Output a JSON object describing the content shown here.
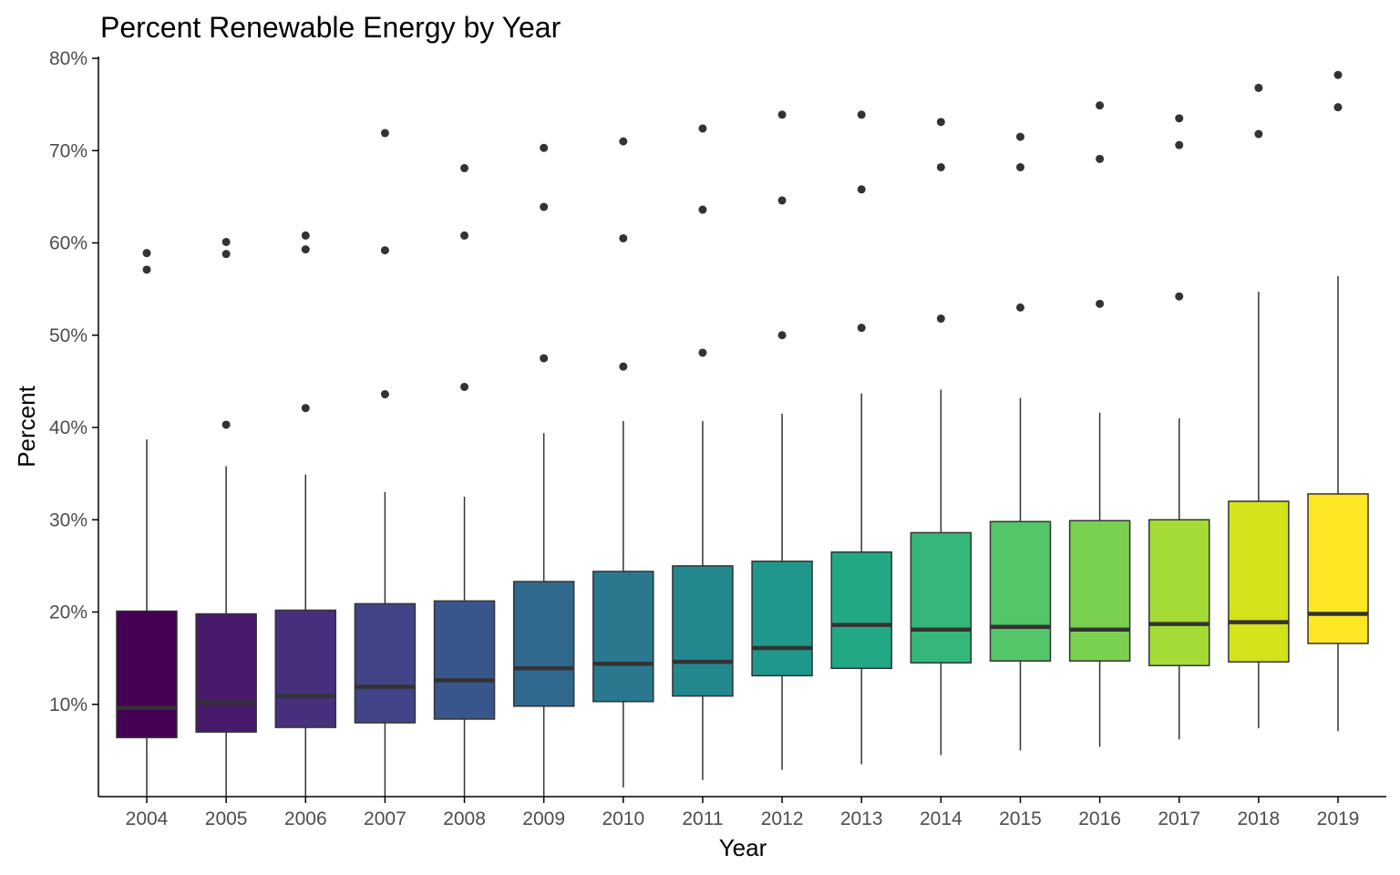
{
  "chart_data": {
    "type": "boxplot",
    "title": "Percent Renewable Energy by Year",
    "xlabel": "Year",
    "ylabel": "Percent",
    "ylim": [
      0,
      80
    ],
    "y_ticks": [
      10,
      20,
      30,
      40,
      50,
      60,
      70,
      80
    ],
    "y_tick_labels": [
      "10%",
      "20%",
      "30%",
      "40%",
      "50%",
      "60%",
      "70%",
      "80%"
    ],
    "grid": false,
    "legend": "none",
    "categories": [
      "2004",
      "2005",
      "2006",
      "2007",
      "2008",
      "2009",
      "2010",
      "2011",
      "2012",
      "2013",
      "2014",
      "2015",
      "2016",
      "2017",
      "2018",
      "2019"
    ],
    "boxes": [
      {
        "year": "2004",
        "lower_whisker": 0.0,
        "q1": 6.4,
        "median": 9.6,
        "q3": 20.1,
        "upper_whisker": 38.7,
        "outliers": [
          57.1,
          58.9
        ],
        "color": "#440154"
      },
      {
        "year": "2005",
        "lower_whisker": 0.0,
        "q1": 7.0,
        "median": 10.2,
        "q3": 19.8,
        "upper_whisker": 35.8,
        "outliers": [
          40.3,
          58.8,
          60.1
        ],
        "color": "#481a6c"
      },
      {
        "year": "2006",
        "lower_whisker": 0.0,
        "q1": 7.5,
        "median": 10.9,
        "q3": 20.2,
        "upper_whisker": 34.9,
        "outliers": [
          42.1,
          59.3,
          60.8
        ],
        "color": "#472f7d"
      },
      {
        "year": "2007",
        "lower_whisker": 0.0,
        "q1": 8.0,
        "median": 11.9,
        "q3": 20.9,
        "upper_whisker": 33.0,
        "outliers": [
          43.6,
          59.2,
          71.9
        ],
        "color": "#414487"
      },
      {
        "year": "2008",
        "lower_whisker": 0.0,
        "q1": 8.4,
        "median": 12.6,
        "q3": 21.2,
        "upper_whisker": 32.5,
        "outliers": [
          44.4,
          60.8,
          68.1
        ],
        "color": "#39568c"
      },
      {
        "year": "2009",
        "lower_whisker": 0.0,
        "q1": 9.8,
        "median": 13.9,
        "q3": 23.3,
        "upper_whisker": 39.4,
        "outliers": [
          47.5,
          63.9,
          70.3
        ],
        "color": "#31688e"
      },
      {
        "year": "2010",
        "lower_whisker": 1.0,
        "q1": 10.3,
        "median": 14.4,
        "q3": 24.4,
        "upper_whisker": 40.7,
        "outliers": [
          46.6,
          60.5,
          71.0
        ],
        "color": "#2a788e"
      },
      {
        "year": "2011",
        "lower_whisker": 1.8,
        "q1": 10.9,
        "median": 14.6,
        "q3": 25.0,
        "upper_whisker": 40.7,
        "outliers": [
          48.1,
          63.6,
          72.4
        ],
        "color": "#23888e"
      },
      {
        "year": "2012",
        "lower_whisker": 2.9,
        "q1": 13.1,
        "median": 16.1,
        "q3": 25.5,
        "upper_whisker": 41.5,
        "outliers": [
          50.0,
          64.6,
          73.9
        ],
        "color": "#1f988b"
      },
      {
        "year": "2013",
        "lower_whisker": 3.5,
        "q1": 13.9,
        "median": 18.6,
        "q3": 26.5,
        "upper_whisker": 43.7,
        "outliers": [
          50.8,
          65.8,
          73.9
        ],
        "color": "#22a884"
      },
      {
        "year": "2014",
        "lower_whisker": 4.5,
        "q1": 14.5,
        "median": 18.1,
        "q3": 28.6,
        "upper_whisker": 44.1,
        "outliers": [
          51.8,
          68.2,
          73.1
        ],
        "color": "#35b779"
      },
      {
        "year": "2015",
        "lower_whisker": 5.0,
        "q1": 14.7,
        "median": 18.4,
        "q3": 29.8,
        "upper_whisker": 43.2,
        "outliers": [
          53.0,
          68.2,
          71.5
        ],
        "color": "#54c568"
      },
      {
        "year": "2016",
        "lower_whisker": 5.4,
        "q1": 14.7,
        "median": 18.1,
        "q3": 29.9,
        "upper_whisker": 41.6,
        "outliers": [
          53.4,
          69.1,
          74.9
        ],
        "color": "#7ad151"
      },
      {
        "year": "2017",
        "lower_whisker": 6.2,
        "q1": 14.2,
        "median": 18.7,
        "q3": 30.0,
        "upper_whisker": 41.0,
        "outliers": [
          54.2,
          70.6,
          73.5
        ],
        "color": "#a5db36"
      },
      {
        "year": "2018",
        "lower_whisker": 7.4,
        "q1": 14.6,
        "median": 18.9,
        "q3": 32.0,
        "upper_whisker": 54.7,
        "outliers": [
          71.8,
          76.8
        ],
        "color": "#d2e21b"
      },
      {
        "year": "2019",
        "lower_whisker": 7.1,
        "q1": 16.6,
        "median": 19.8,
        "q3": 32.8,
        "upper_whisker": 56.4,
        "outliers": [
          74.7,
          78.2
        ],
        "color": "#fde725"
      }
    ]
  }
}
